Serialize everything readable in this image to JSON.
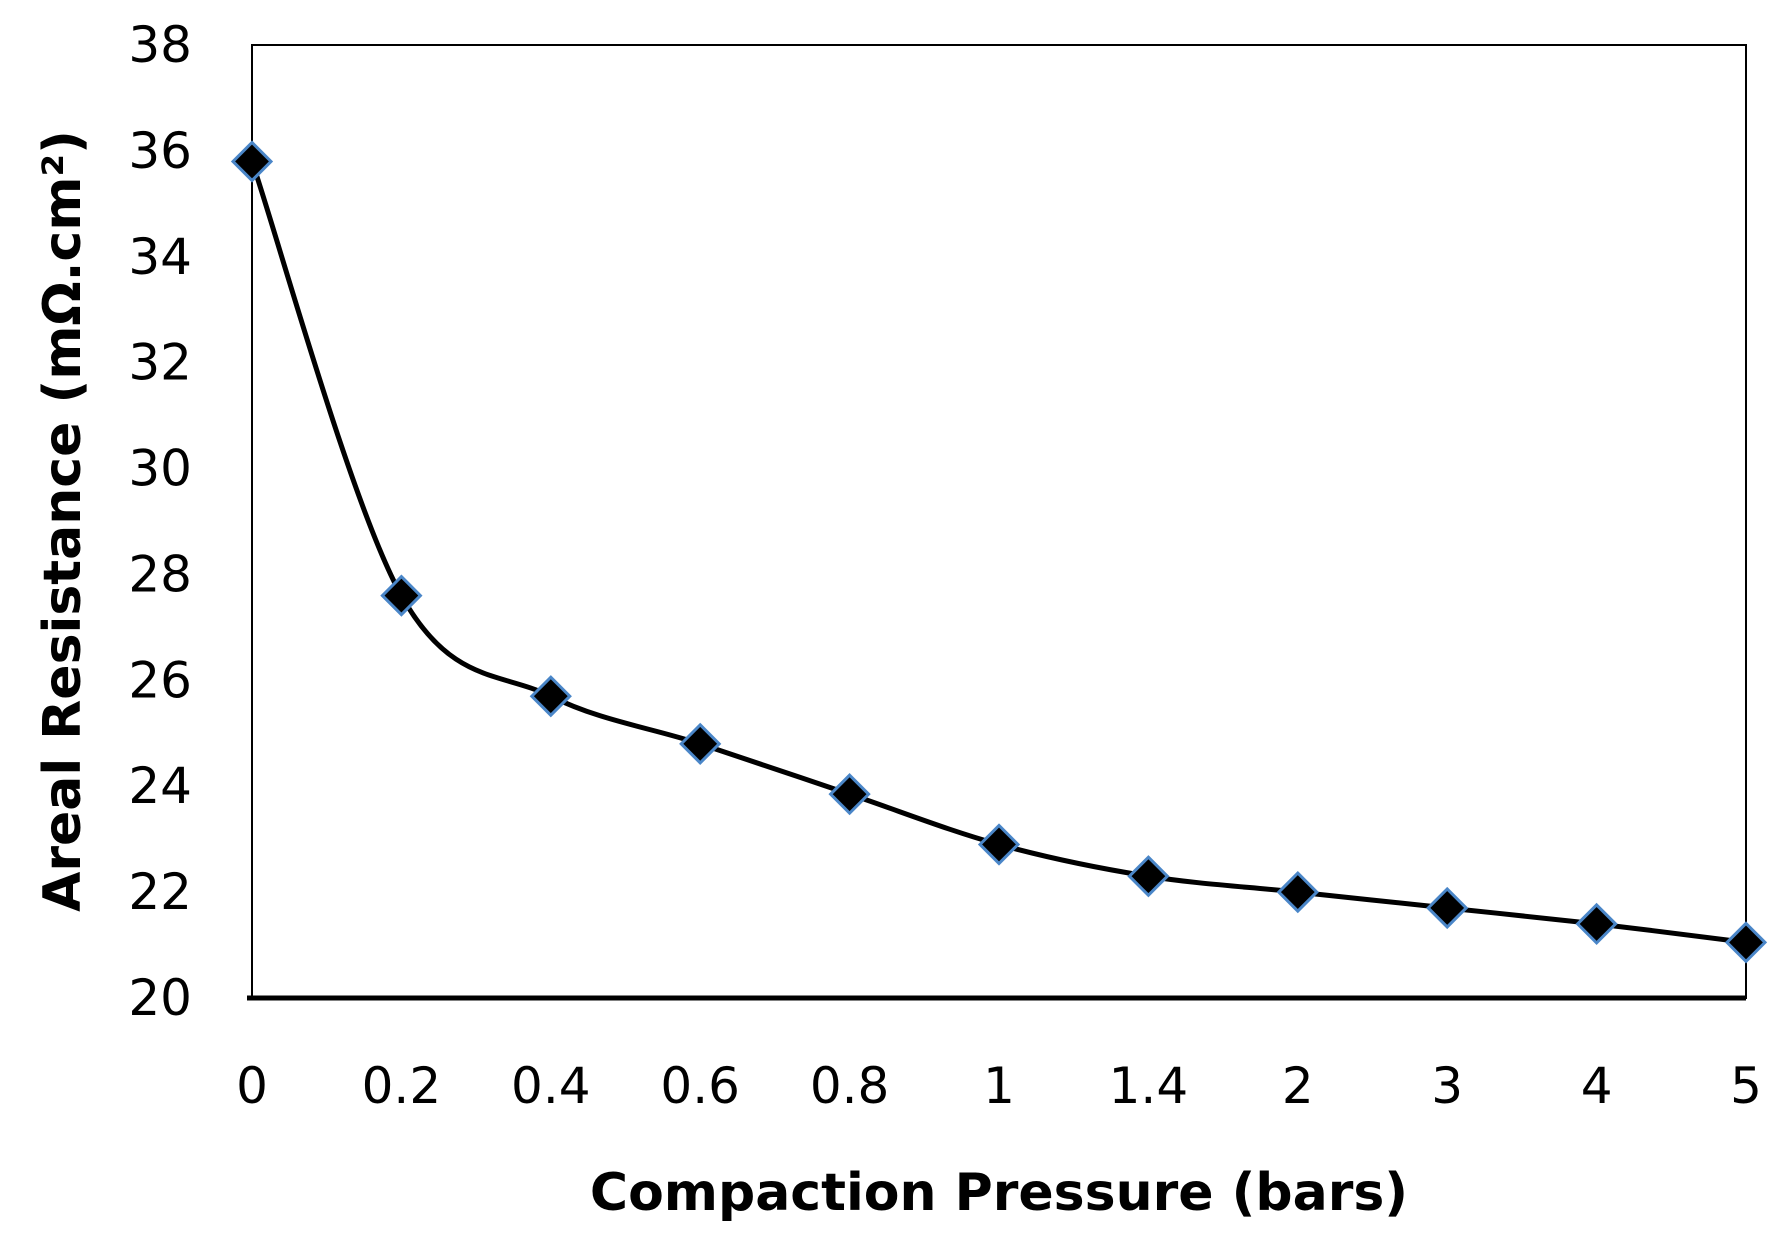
{
  "chart_data": {
    "type": "line",
    "title": "",
    "xlabel": "Compaction Pressure (bars)",
    "ylabel": "Areal Resistance (mΩ.cm²)",
    "categories": [
      "0",
      "0.2",
      "0.4",
      "0.6",
      "0.8",
      "1",
      "1.4",
      "2",
      "3",
      "4",
      "5"
    ],
    "series": [
      {
        "name": "Areal Resistance",
        "values": [
          35.8,
          27.6,
          25.7,
          24.8,
          23.85,
          22.9,
          22.3,
          22.0,
          21.7,
          21.4,
          21.05
        ],
        "line_color": "#000000",
        "marker": "diamond",
        "marker_fill": "#000000",
        "marker_edge": "#4a86c8"
      }
    ],
    "ylim": [
      20,
      38
    ],
    "yticks": [
      "20",
      "22",
      "24",
      "26",
      "28",
      "30",
      "32",
      "34",
      "36",
      "38"
    ],
    "grid": false,
    "legend": "none"
  }
}
